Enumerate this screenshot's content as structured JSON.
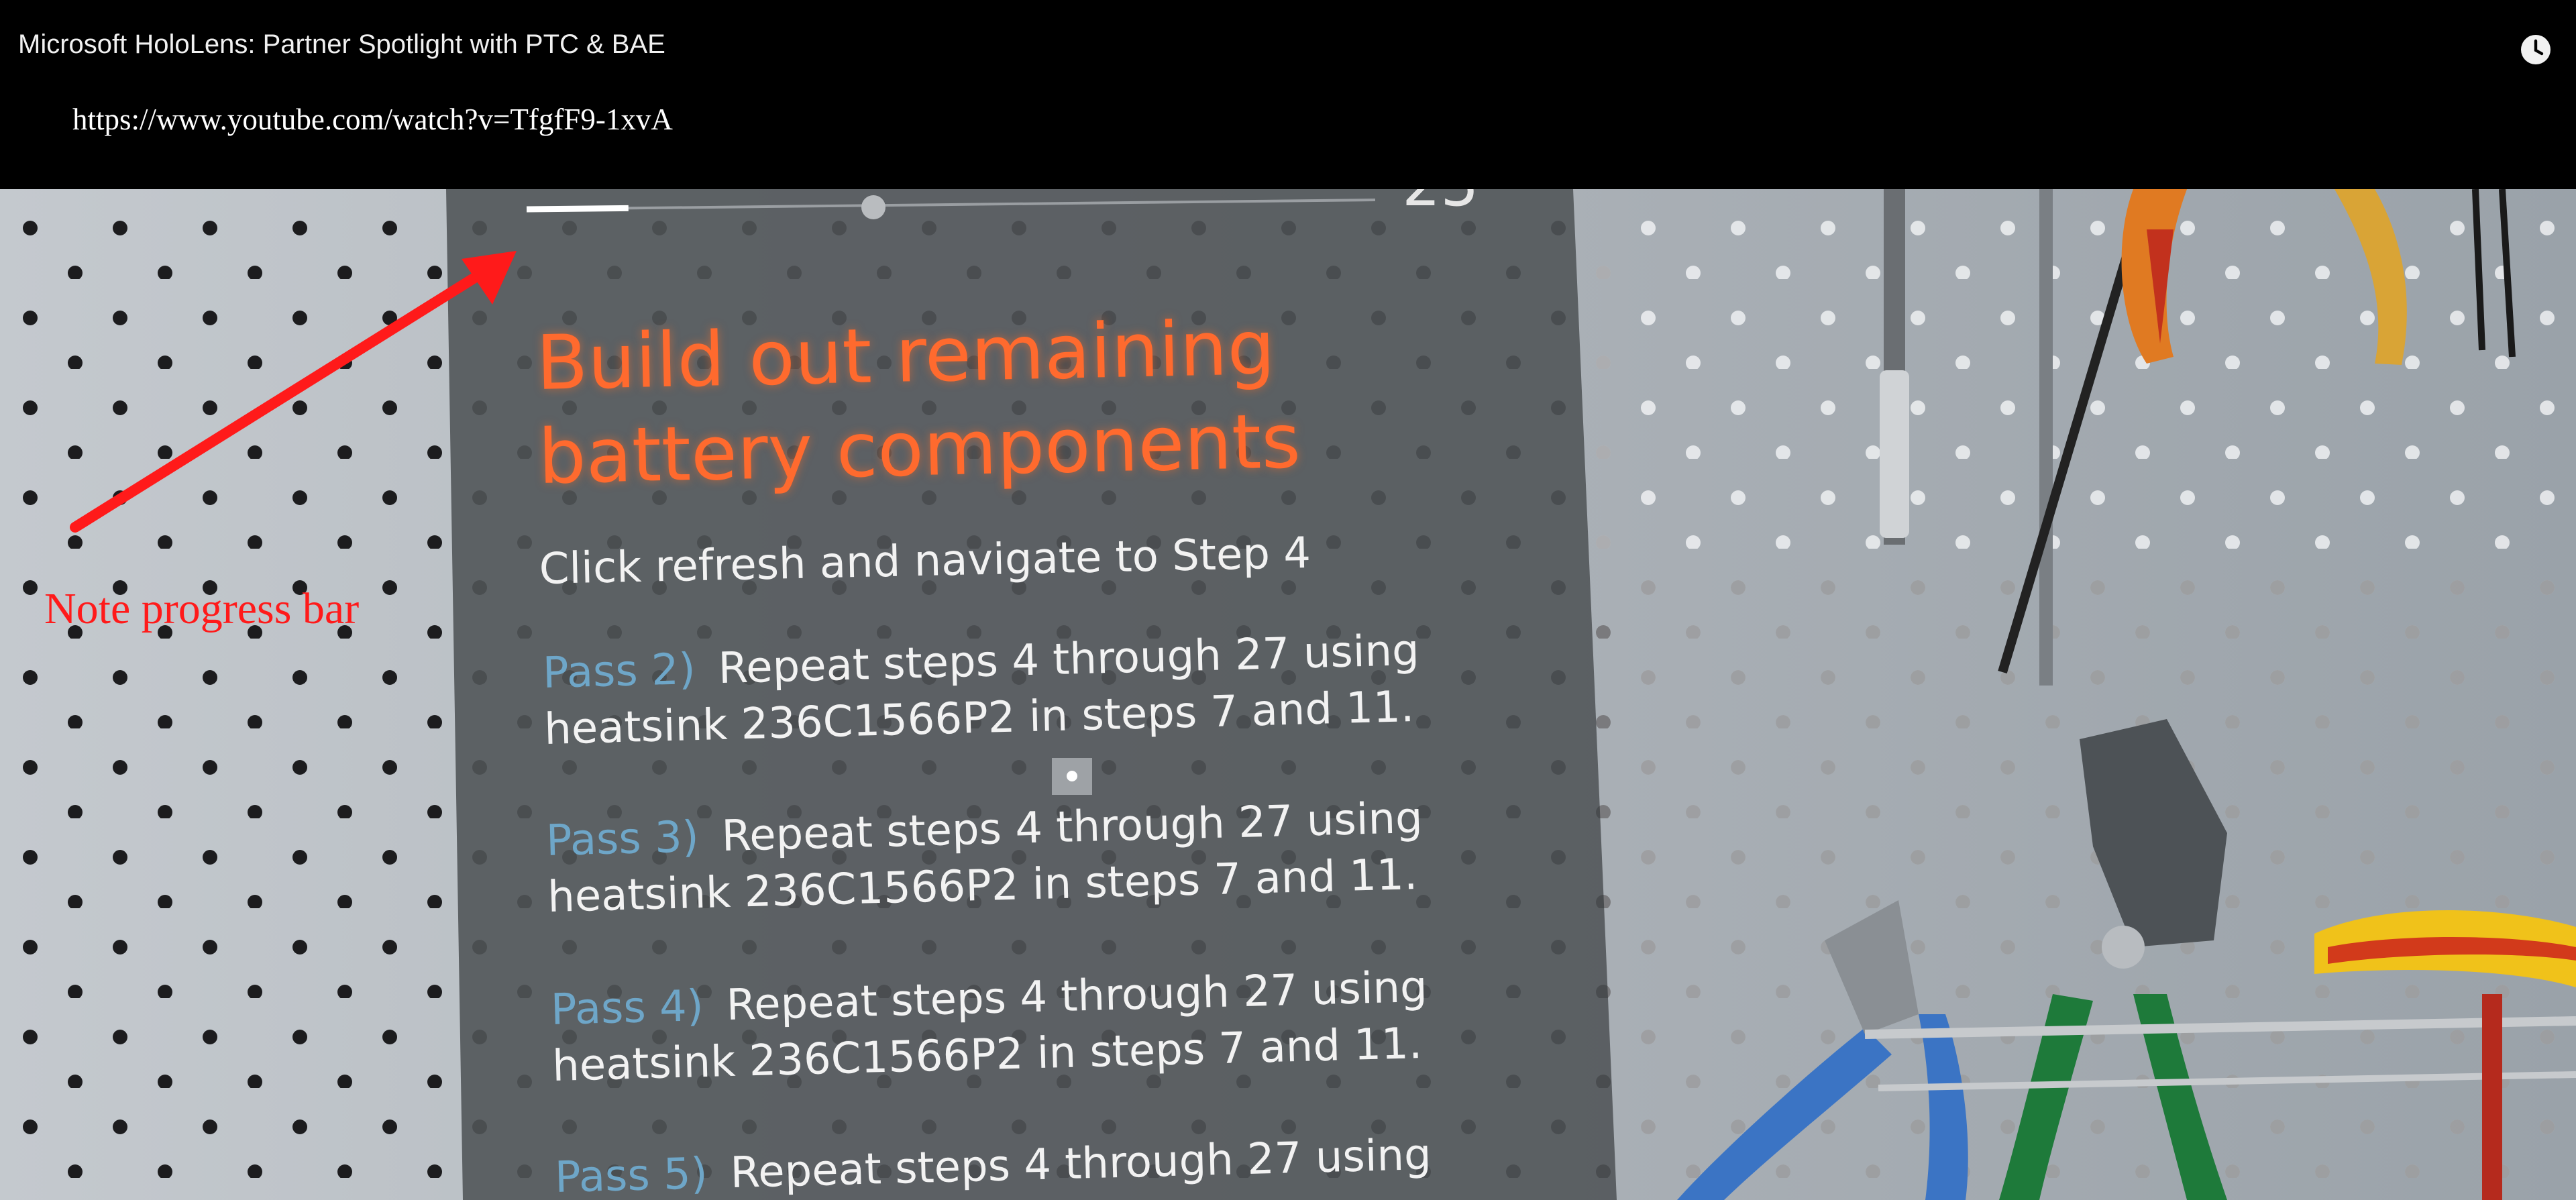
{
  "header": {
    "video_title": "Microsoft HoloLens: Partner Spotlight with PTC & BAE",
    "url": "https://www.youtube.com/watch?v=TfgfF9-1xvA",
    "watch_later_icon": "clock-icon"
  },
  "hologram": {
    "progress_fraction": 0.12,
    "title_line1": "Build out remaining",
    "title_line2": "battery components",
    "instruction": "Click refresh and navigate to Step 4",
    "steps": [
      {
        "pass": "Pass 2)",
        "line1": "Repeat steps 4 through 27 using",
        "line2": "heatsink 236C1566P2 in steps 7 and 11."
      },
      {
        "pass": "Pass 3)",
        "line1": "Repeat steps 4 through 27 using",
        "line2": "heatsink 236C1566P2 in steps 7 and 11."
      },
      {
        "pass": "Pass 4)",
        "line1": "Repeat steps 4 through 27 using",
        "line2": "heatsink 236C1566P2 in steps 7 and 11."
      },
      {
        "pass": "Pass 5)",
        "line1": "Repeat steps 4 through 27 using",
        "line2": ""
      }
    ],
    "title_color": "#ff6a2e",
    "pass_color": "#6ea6c8"
  },
  "annotation": {
    "label": "Note progress bar",
    "color": "#ff1a1a"
  }
}
